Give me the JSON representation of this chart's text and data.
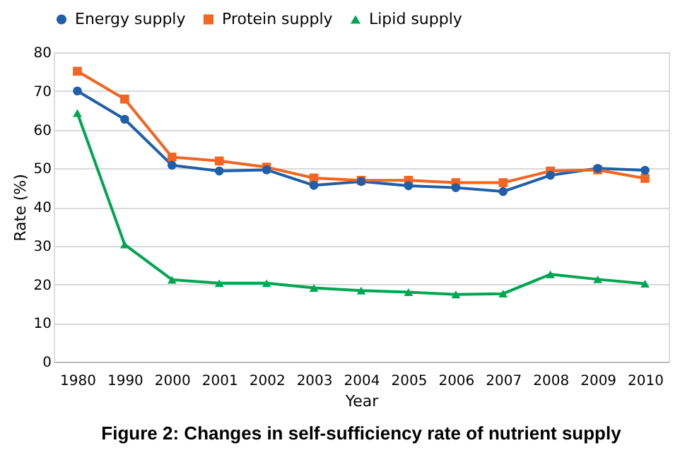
{
  "chart_data": {
    "type": "line",
    "xlabel": "Year",
    "ylabel": "Rate (%)",
    "categories": [
      "1980",
      "1990",
      "2000",
      "2001",
      "2002",
      "2003",
      "2004",
      "2005",
      "2006",
      "2007",
      "2008",
      "2009",
      "2010"
    ],
    "series": [
      {
        "name": "Energy supply",
        "color": "#1f5fa8",
        "marker": "circle",
        "values": [
          70,
          62.7,
          50.8,
          49.3,
          49.6,
          45.6,
          46.6,
          45.5,
          45,
          44,
          48.2,
          50,
          49.5
        ]
      },
      {
        "name": "Protein supply",
        "color": "#f26522",
        "marker": "square",
        "values": [
          75.1,
          67.9,
          52.9,
          51.9,
          50.3,
          47.5,
          46.9,
          46.9,
          46.3,
          46.3,
          49.3,
          49.6,
          47.4
        ]
      },
      {
        "name": "Lipid supply",
        "color": "#00a651",
        "marker": "triangle",
        "values": [
          64.3,
          30.3,
          21.2,
          20.3,
          20.3,
          19.1,
          18.4,
          18,
          17.4,
          17.6,
          22.6,
          21.3,
          20.2
        ]
      }
    ],
    "ylim": [
      0,
      80
    ],
    "yticks": [
      0,
      10,
      20,
      30,
      40,
      50,
      60,
      70,
      80
    ],
    "grid": "y",
    "legend": "top",
    "line_style": "solid",
    "annotations": [
      "Figure 2: Changes in self-sufficiency rate of nutrient supply"
    ]
  }
}
